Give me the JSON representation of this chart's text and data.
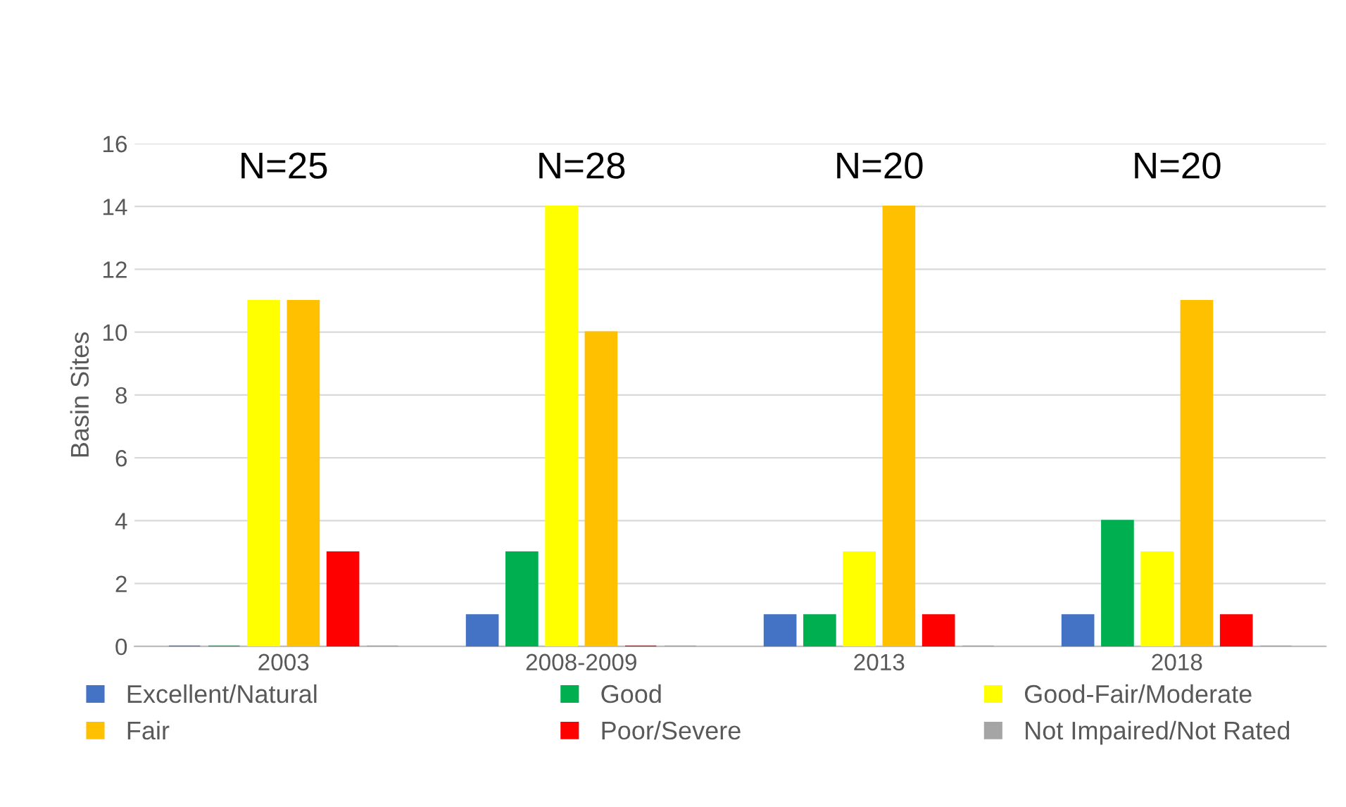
{
  "chart_data": {
    "type": "bar",
    "ylabel": "Basin Sites",
    "categories": [
      "2003",
      "2008-2009",
      "2013",
      "2018"
    ],
    "series": [
      {
        "name": "Excellent/Natural",
        "color": "#4472c4",
        "values": [
          0,
          1,
          1,
          1
        ]
      },
      {
        "name": "Good",
        "color": "#00b050",
        "values": [
          0,
          3,
          1,
          4
        ]
      },
      {
        "name": "Good-Fair/Moderate",
        "color": "#ffff00",
        "values": [
          11,
          14,
          3,
          3
        ]
      },
      {
        "name": "Fair",
        "color": "#ffc000",
        "values": [
          11,
          10,
          14,
          11
        ]
      },
      {
        "name": "Poor/Severe",
        "color": "#ff0000",
        "values": [
          3,
          0,
          1,
          1
        ]
      },
      {
        "name": "Not Impaired/Not Rated",
        "color": "#a5a5a5",
        "values": [
          0,
          0,
          0,
          0
        ]
      }
    ],
    "ylim": [
      0,
      16
    ],
    "yticks": [
      0,
      2,
      4,
      6,
      8,
      10,
      12,
      14,
      16
    ],
    "grid": "y",
    "legend": "bottom",
    "annotations": [
      "N=25",
      "N=28",
      "N=20",
      "N=20"
    ]
  }
}
